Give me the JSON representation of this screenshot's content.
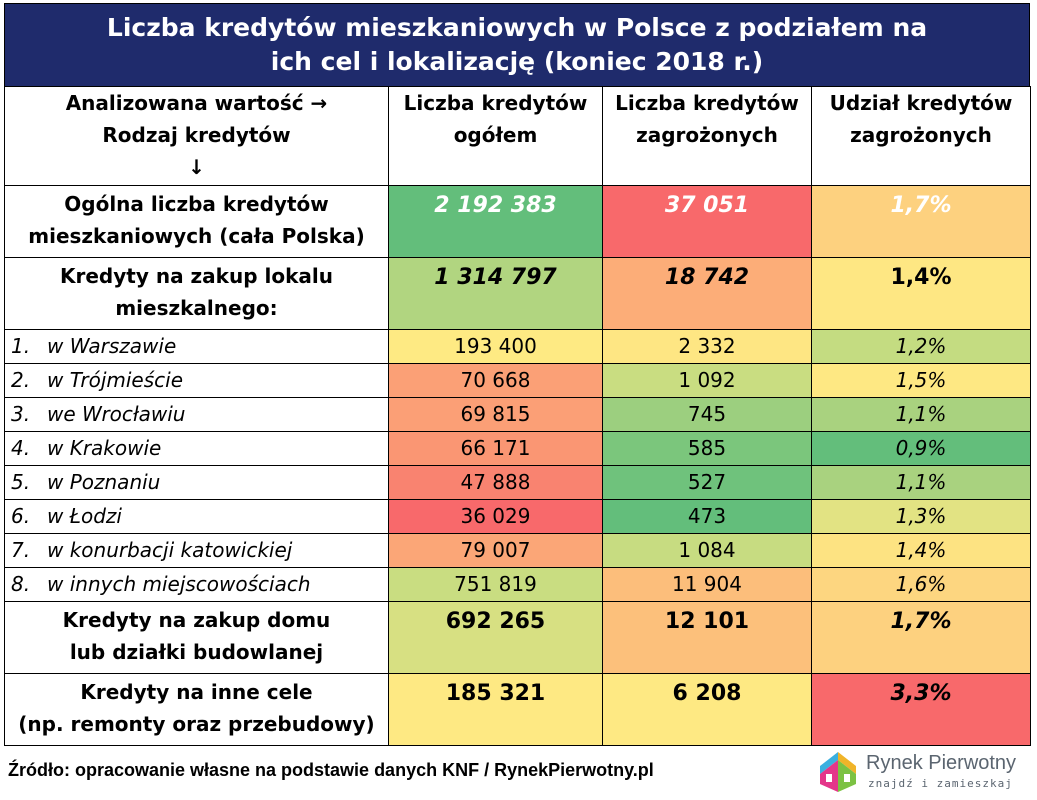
{
  "title": {
    "line1": "Liczba kredytów mieszkaniowych w Polsce z podziałem na",
    "line2": "ich cel i lokalizację (koniec 2018 r.)"
  },
  "header": {
    "corner_line1": "Analizowana wartość →",
    "corner_line2": "Rodzaj kredytów",
    "corner_line3": "↓",
    "col1_line1": "Liczba kredytów",
    "col1_line2": "ogółem",
    "col2_line1": "Liczba kredytów",
    "col2_line2": "zagrożonych",
    "col3_line1": "Udział kredytów",
    "col3_line2": "zagrożonych"
  },
  "summary_total": {
    "label_line1": "Ogólna liczba kredytów",
    "label_line2": "mieszkaniowych (cała Polska)",
    "total": "2 192 383",
    "at_risk": "37 051",
    "share": "1,7%",
    "colors": [
      "#63be7b",
      "#f8696b",
      "#fdd17f"
    ]
  },
  "summary_flats": {
    "label_line1": "Kredyty na zakup lokalu",
    "label_line2": "mieszkalnego:",
    "total": "1 314 797",
    "at_risk": "18 742",
    "share": "1,4%",
    "colors": [
      "#b1d580",
      "#fcad78",
      "#fee783"
    ]
  },
  "cities": [
    {
      "num": "1.",
      "name": "w Warszawie",
      "total": "193 400",
      "at_risk": "2 332",
      "share": "1,2%",
      "colors": [
        "#feea83",
        "#fee683",
        "#c4dc81"
      ]
    },
    {
      "num": "2.",
      "name": "w Trójmieście",
      "total": "70 668",
      "at_risk": "1 092",
      "share": "1,5%",
      "colors": [
        "#fba076",
        "#c9dd81",
        "#fee883"
      ]
    },
    {
      "num": "3.",
      "name": "we Wrocławiu",
      "total": "69 815",
      "at_risk": "745",
      "share": "1,1%",
      "colors": [
        "#fb9f76",
        "#9ccf7f",
        "#a9d27f"
      ]
    },
    {
      "num": "4.",
      "name": "w Krakowie",
      "total": "66 171",
      "at_risk": "585",
      "share": "0,9%",
      "colors": [
        "#fa9673",
        "#7bc67c",
        "#63be7b"
      ]
    },
    {
      "num": "5.",
      "name": "w Poznaniu",
      "total": "47 888",
      "at_risk": "527",
      "share": "1,1%",
      "colors": [
        "#f98370",
        "#6fc27c",
        "#a9d27f"
      ]
    },
    {
      "num": "6.",
      "name": "w Łodzi",
      "total": "36 029",
      "at_risk": "473",
      "share": "1,3%",
      "colors": [
        "#f8696b",
        "#63be7b",
        "#e2e383"
      ]
    },
    {
      "num": "7.",
      "name": "w konurbacji katowickiej",
      "total": "79 007",
      "at_risk": "1 084",
      "share": "1,4%",
      "colors": [
        "#fba677",
        "#c7dc81",
        "#fde382"
      ]
    },
    {
      "num": "8.",
      "name": "w innych miejscowościach",
      "total": "751 819",
      "at_risk": "11 904",
      "share": "1,6%",
      "colors": [
        "#c9dd81",
        "#fcbe7b",
        "#fdd680"
      ]
    }
  ],
  "summary_houses": {
    "label_line1": "Kredyty na zakup domu",
    "label_line2": "lub działki budowlanej",
    "total": "692 265",
    "at_risk": "12 101",
    "share": "1,7%",
    "colors": [
      "#d7e082",
      "#fcc07b",
      "#fdd17f"
    ]
  },
  "summary_other": {
    "label_line1": "Kredyty na inne cele",
    "label_line2": "(np. remonty oraz przebudowy)",
    "total": "185 321",
    "at_risk": "6 208",
    "share": "3,3%",
    "colors": [
      "#fee983",
      "#fee983",
      "#f8696b"
    ]
  },
  "footer": {
    "source": "Źródło: opracowanie własne na podstawie danych KNF / RynekPierwotny.pl"
  },
  "logo": {
    "brand": "Rynek Pierwotny",
    "tagline": "znajdź i zamieszkaj"
  }
}
